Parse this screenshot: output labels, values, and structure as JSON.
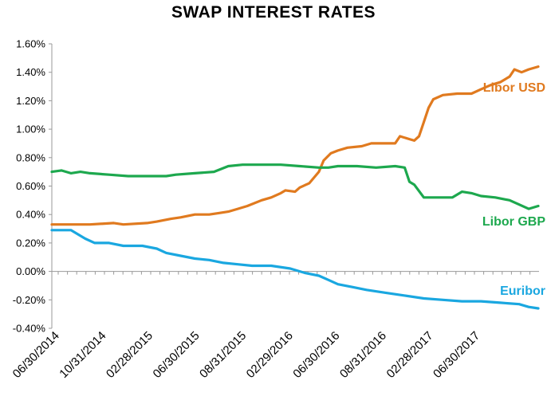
{
  "chart_data": {
    "type": "line",
    "title": "SWAP INTEREST RATES",
    "xlabel": "",
    "ylabel": "",
    "ylim": [
      -0.4,
      1.6
    ],
    "yticks": [
      "-0.40%",
      "-0.20%",
      "0.00%",
      "0.20%",
      "0.40%",
      "0.60%",
      "0.80%",
      "1.00%",
      "1.20%",
      "1.40%",
      "1.60%"
    ],
    "xticks": [
      "06/30/2014",
      "10/31/2014",
      "02/28/2015",
      "06/30/2015",
      "08/31/2015",
      "02/29/2016",
      "06/30/2016",
      "08/31/2016",
      "02/28/2017",
      "06/30/2017"
    ],
    "grid": false,
    "series": [
      {
        "name": "Libor USD",
        "color": "#E07A1F",
        "points": [
          [
            0,
            0.33
          ],
          [
            0.08,
            0.33
          ],
          [
            0.13,
            0.34
          ],
          [
            0.15,
            0.33
          ],
          [
            0.2,
            0.34
          ],
          [
            0.22,
            0.35
          ],
          [
            0.25,
            0.37
          ],
          [
            0.27,
            0.38
          ],
          [
            0.3,
            0.4
          ],
          [
            0.33,
            0.4
          ],
          [
            0.35,
            0.41
          ],
          [
            0.37,
            0.42
          ],
          [
            0.39,
            0.44
          ],
          [
            0.41,
            0.46
          ],
          [
            0.44,
            0.5
          ],
          [
            0.46,
            0.52
          ],
          [
            0.48,
            0.55
          ],
          [
            0.49,
            0.57
          ],
          [
            0.51,
            0.56
          ],
          [
            0.52,
            0.59
          ],
          [
            0.54,
            0.62
          ],
          [
            0.56,
            0.7
          ],
          [
            0.57,
            0.78
          ],
          [
            0.585,
            0.83
          ],
          [
            0.6,
            0.85
          ],
          [
            0.62,
            0.87
          ],
          [
            0.65,
            0.88
          ],
          [
            0.67,
            0.9
          ],
          [
            0.72,
            0.9
          ],
          [
            0.73,
            0.95
          ],
          [
            0.75,
            0.93
          ],
          [
            0.76,
            0.92
          ],
          [
            0.77,
            0.95
          ],
          [
            0.78,
            1.05
          ],
          [
            0.79,
            1.15
          ],
          [
            0.8,
            1.21
          ],
          [
            0.82,
            1.24
          ],
          [
            0.85,
            1.25
          ],
          [
            0.88,
            1.25
          ],
          [
            0.9,
            1.28
          ],
          [
            0.92,
            1.31
          ],
          [
            0.94,
            1.33
          ],
          [
            0.96,
            1.37
          ],
          [
            0.97,
            1.42
          ],
          [
            0.985,
            1.4
          ],
          [
            1.0,
            1.42
          ],
          [
            1.02,
            1.44
          ]
        ]
      },
      {
        "name": "Libor GBP",
        "color": "#1DA84E",
        "points": [
          [
            0,
            0.7
          ],
          [
            0.02,
            0.71
          ],
          [
            0.04,
            0.69
          ],
          [
            0.06,
            0.7
          ],
          [
            0.08,
            0.69
          ],
          [
            0.12,
            0.68
          ],
          [
            0.16,
            0.67
          ],
          [
            0.2,
            0.67
          ],
          [
            0.24,
            0.67
          ],
          [
            0.26,
            0.68
          ],
          [
            0.3,
            0.69
          ],
          [
            0.34,
            0.7
          ],
          [
            0.37,
            0.74
          ],
          [
            0.4,
            0.75
          ],
          [
            0.44,
            0.75
          ],
          [
            0.48,
            0.75
          ],
          [
            0.52,
            0.74
          ],
          [
            0.56,
            0.73
          ],
          [
            0.58,
            0.73
          ],
          [
            0.6,
            0.74
          ],
          [
            0.64,
            0.74
          ],
          [
            0.68,
            0.73
          ],
          [
            0.72,
            0.74
          ],
          [
            0.74,
            0.73
          ],
          [
            0.75,
            0.63
          ],
          [
            0.76,
            0.61
          ],
          [
            0.78,
            0.52
          ],
          [
            0.82,
            0.52
          ],
          [
            0.84,
            0.52
          ],
          [
            0.86,
            0.56
          ],
          [
            0.88,
            0.55
          ],
          [
            0.9,
            0.53
          ],
          [
            0.93,
            0.52
          ],
          [
            0.96,
            0.5
          ],
          [
            0.98,
            0.47
          ],
          [
            1.0,
            0.44
          ],
          [
            1.02,
            0.46
          ]
        ]
      },
      {
        "name": "Euribor",
        "color": "#1AA7E0",
        "points": [
          [
            0,
            0.29
          ],
          [
            0.04,
            0.29
          ],
          [
            0.07,
            0.23
          ],
          [
            0.09,
            0.2
          ],
          [
            0.12,
            0.2
          ],
          [
            0.15,
            0.18
          ],
          [
            0.19,
            0.18
          ],
          [
            0.22,
            0.16
          ],
          [
            0.24,
            0.13
          ],
          [
            0.27,
            0.11
          ],
          [
            0.3,
            0.09
          ],
          [
            0.33,
            0.08
          ],
          [
            0.36,
            0.06
          ],
          [
            0.39,
            0.05
          ],
          [
            0.42,
            0.04
          ],
          [
            0.46,
            0.04
          ],
          [
            0.5,
            0.02
          ],
          [
            0.53,
            -0.01
          ],
          [
            0.56,
            -0.03
          ],
          [
            0.58,
            -0.06
          ],
          [
            0.6,
            -0.09
          ],
          [
            0.63,
            -0.11
          ],
          [
            0.66,
            -0.13
          ],
          [
            0.7,
            -0.15
          ],
          [
            0.74,
            -0.17
          ],
          [
            0.78,
            -0.19
          ],
          [
            0.82,
            -0.2
          ],
          [
            0.86,
            -0.21
          ],
          [
            0.9,
            -0.21
          ],
          [
            0.94,
            -0.22
          ],
          [
            0.98,
            -0.23
          ],
          [
            1.0,
            -0.25
          ],
          [
            1.02,
            -0.26
          ]
        ]
      }
    ]
  }
}
